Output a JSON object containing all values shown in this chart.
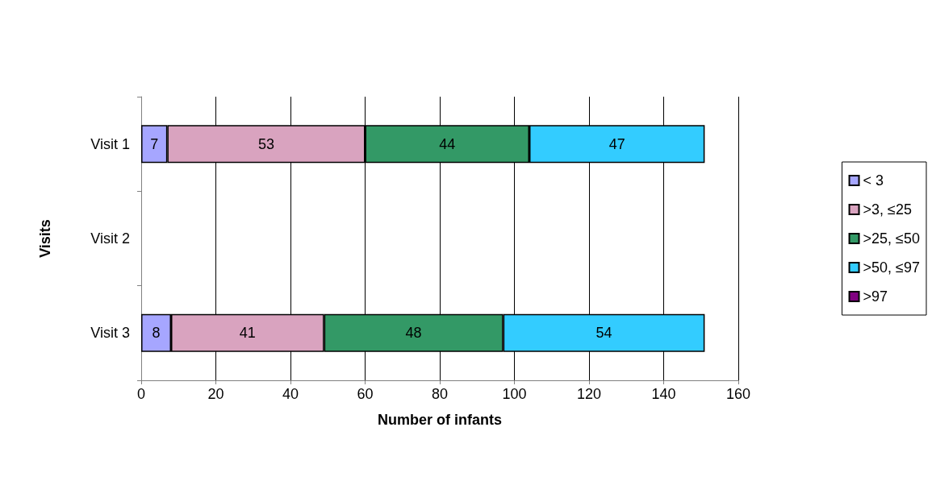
{
  "chart_data": {
    "type": "bar",
    "orientation": "horizontal",
    "stacked": true,
    "xlabel": "Number of infants",
    "ylabel": "Visits",
    "categories": [
      "Visit 1",
      "Visit 2",
      "Visit 3"
    ],
    "series": [
      {
        "name": "< 3",
        "color": "#a6a6ff",
        "values": [
          7,
          null,
          8
        ]
      },
      {
        "name": ">3, ≤25",
        "color": "#d9a3bf",
        "values": [
          53,
          null,
          41
        ]
      },
      {
        "name": ">25, ≤50",
        "color": "#339966",
        "values": [
          44,
          null,
          48
        ]
      },
      {
        "name": ">50, ≤97",
        "color": "#33ccff",
        "values": [
          47,
          null,
          54
        ]
      },
      {
        "name": ">97",
        "color": "#800080",
        "values": [
          null,
          null,
          null
        ]
      }
    ],
    "xlim": [
      0,
      160
    ],
    "xticks": [
      0,
      20,
      40,
      60,
      80,
      100,
      120,
      140,
      160
    ],
    "grid": "x",
    "legend": "right",
    "data_labels": true
  }
}
